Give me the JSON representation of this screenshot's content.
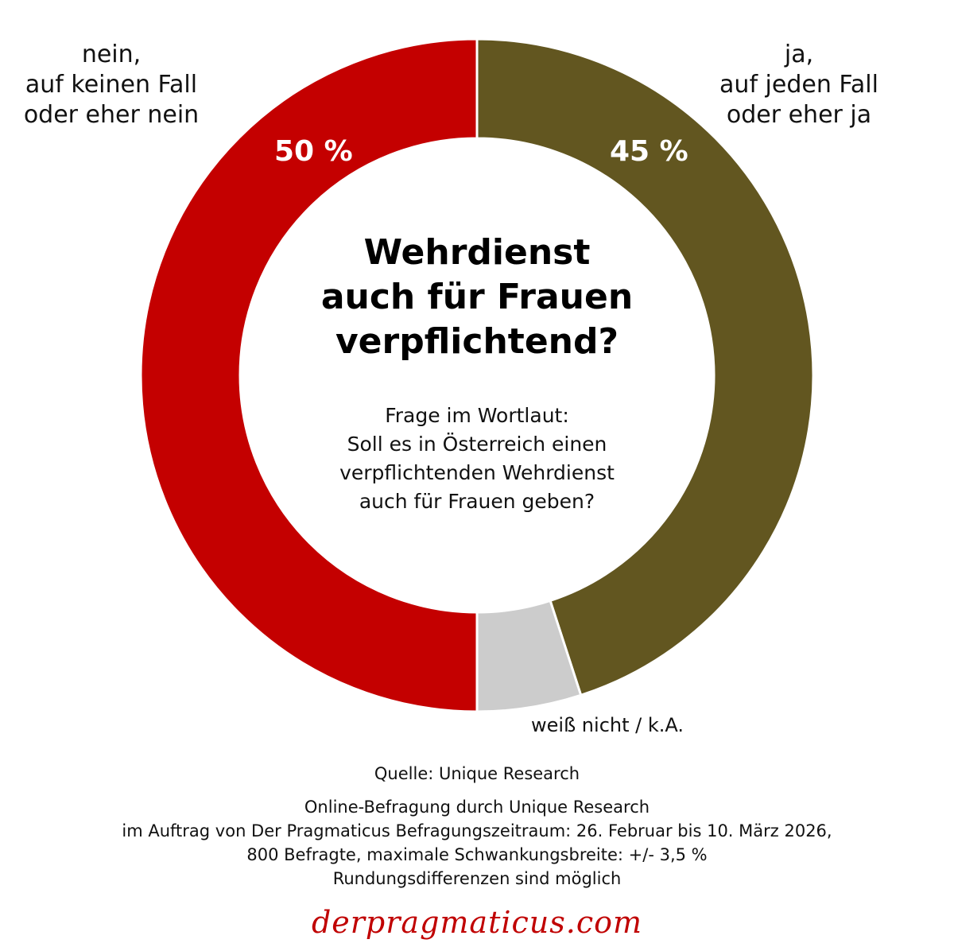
{
  "chart_data": {
    "type": "pie",
    "variant": "donut",
    "title": [
      "Wehrdienst",
      "auch für Frauen",
      "verpflichtend?"
    ],
    "question": [
      "Frage im Wortlaut:",
      "Soll es in Österreich einen",
      "verpflichtenden Wehrdienst",
      "auch für Frauen geben?"
    ],
    "slices": [
      {
        "key": "yes",
        "label": [
          "ja,",
          "auf jeden Fall",
          "oder eher ja"
        ],
        "value": 45,
        "value_label": "45 %",
        "color": "#625620"
      },
      {
        "key": "dk",
        "label": [
          "weiß nicht / k.A."
        ],
        "value": 5,
        "value_label": "",
        "color": "#cccccc"
      },
      {
        "key": "no",
        "label": [
          "nein,",
          "auf keinen Fall",
          "oder eher nein"
        ],
        "value": 50,
        "value_label": "50 %",
        "color": "#c40000"
      }
    ]
  },
  "footer": {
    "source": "Quelle: Unique Research",
    "method": [
      "Online-Befragung durch Unique Research",
      "im Auftrag von Der Pragmaticus Befragungszeitraum: 26. Februar bis 10. März 2026,",
      "800 Befragte, maximale Schwankungsbreite: +/- 3,5 %"
    ],
    "note": "Rundungsdifferenzen sind möglich"
  },
  "brand": "derpragmaticus.com"
}
